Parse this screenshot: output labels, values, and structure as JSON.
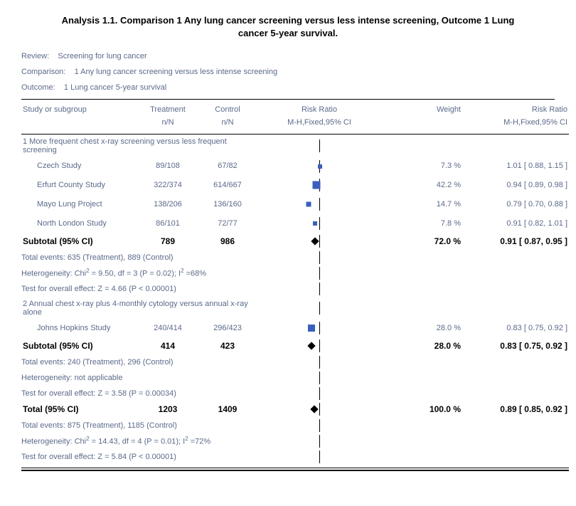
{
  "title": "Analysis 1.1.   Comparison 1 Any lung cancer screening versus less intense screening, Outcome 1 Lung cancer 5-year survival.",
  "meta": {
    "review_label": "Review:",
    "review_value": "Screening for lung cancer",
    "comparison_label": "Comparison:",
    "comparison_value": "1 Any lung cancer screening versus less intense screening",
    "outcome_label": "Outcome:",
    "outcome_value": "1 Lung cancer 5-year survival"
  },
  "headers": {
    "study": "Study or subgroup",
    "treatment": "Treatment",
    "control": "Control",
    "nN": "n/N",
    "risk_ratio": "Risk Ratio",
    "mh": "M-H,Fixed,95% CI",
    "weight": "Weight"
  },
  "plot": {
    "scale_min_log": -0.6,
    "scale_max_log": 0.6,
    "center_rr": 1.0,
    "axis_color": "#000000",
    "marker_color": "#3a5fbf",
    "diamond_color": "#000000"
  },
  "groups": [
    {
      "label": "1 More frequent chest x-ray screening versus less frequent screening",
      "studies": [
        {
          "name": "Czech Study",
          "treat": "89/108",
          "ctrl": "67/82",
          "weight": "7.3 %",
          "rr": "1.01 [ 0.88, 1.15 ]",
          "rr_point": 1.01,
          "marker_size": 6
        },
        {
          "name": "Erfurt County Study",
          "treat": "322/374",
          "ctrl": "614/667",
          "weight": "42.2 %",
          "rr": "0.94 [ 0.89, 0.98 ]",
          "rr_point": 0.94,
          "marker_size": 11
        },
        {
          "name": "Mayo Lung Project",
          "treat": "138/206",
          "ctrl": "136/160",
          "weight": "14.7 %",
          "rr": "0.79 [ 0.70, 0.88 ]",
          "rr_point": 0.79,
          "marker_size": 7
        },
        {
          "name": "North London Study",
          "treat": "86/101",
          "ctrl": "72/77",
          "weight": "7.8 %",
          "rr": "0.91 [ 0.82, 1.01 ]",
          "rr_point": 0.91,
          "marker_size": 6
        }
      ],
      "subtotal": {
        "label": "Subtotal (95% CI)",
        "treat": "789",
        "ctrl": "986",
        "weight": "72.0 %",
        "rr": "0.91 [ 0.87, 0.95 ]",
        "rr_point": 0.91
      },
      "notes": [
        "Total events: 635 (Treatment), 889 (Control)",
        "Heterogeneity: Chi² = 9.50, df = 3 (P = 0.02); I² =68%",
        "Test for overall effect: Z = 4.66 (P < 0.00001)"
      ]
    },
    {
      "label": "2 Annual chest x-ray plus 4-monthly cytology versus annual x-ray alone",
      "studies": [
        {
          "name": "Johns Hopkins Study",
          "treat": "240/414",
          "ctrl": "296/423",
          "weight": "28.0 %",
          "rr": "0.83 [ 0.75, 0.92 ]",
          "rr_point": 0.83,
          "marker_size": 10
        }
      ],
      "subtotal": {
        "label": "Subtotal (95% CI)",
        "treat": "414",
        "ctrl": "423",
        "weight": "28.0 %",
        "rr": "0.83 [ 0.75, 0.92 ]",
        "rr_point": 0.83
      },
      "notes": [
        "Total events: 240 (Treatment), 296 (Control)",
        "Heterogeneity: not applicable",
        "Test for overall effect: Z = 3.58 (P = 0.00034)"
      ]
    }
  ],
  "total": {
    "label": "Total (95% CI)",
    "treat": "1203",
    "ctrl": "1409",
    "weight": "100.0 %",
    "rr": "0.89 [ 0.85, 0.92 ]",
    "rr_point": 0.89,
    "notes": [
      "Total events: 875 (Treatment), 1185 (Control)",
      "Heterogeneity: Chi² = 14.43, df = 4 (P = 0.01); I² =72%",
      "Test for overall effect: Z = 5.84 (P < 0.00001)"
    ]
  }
}
